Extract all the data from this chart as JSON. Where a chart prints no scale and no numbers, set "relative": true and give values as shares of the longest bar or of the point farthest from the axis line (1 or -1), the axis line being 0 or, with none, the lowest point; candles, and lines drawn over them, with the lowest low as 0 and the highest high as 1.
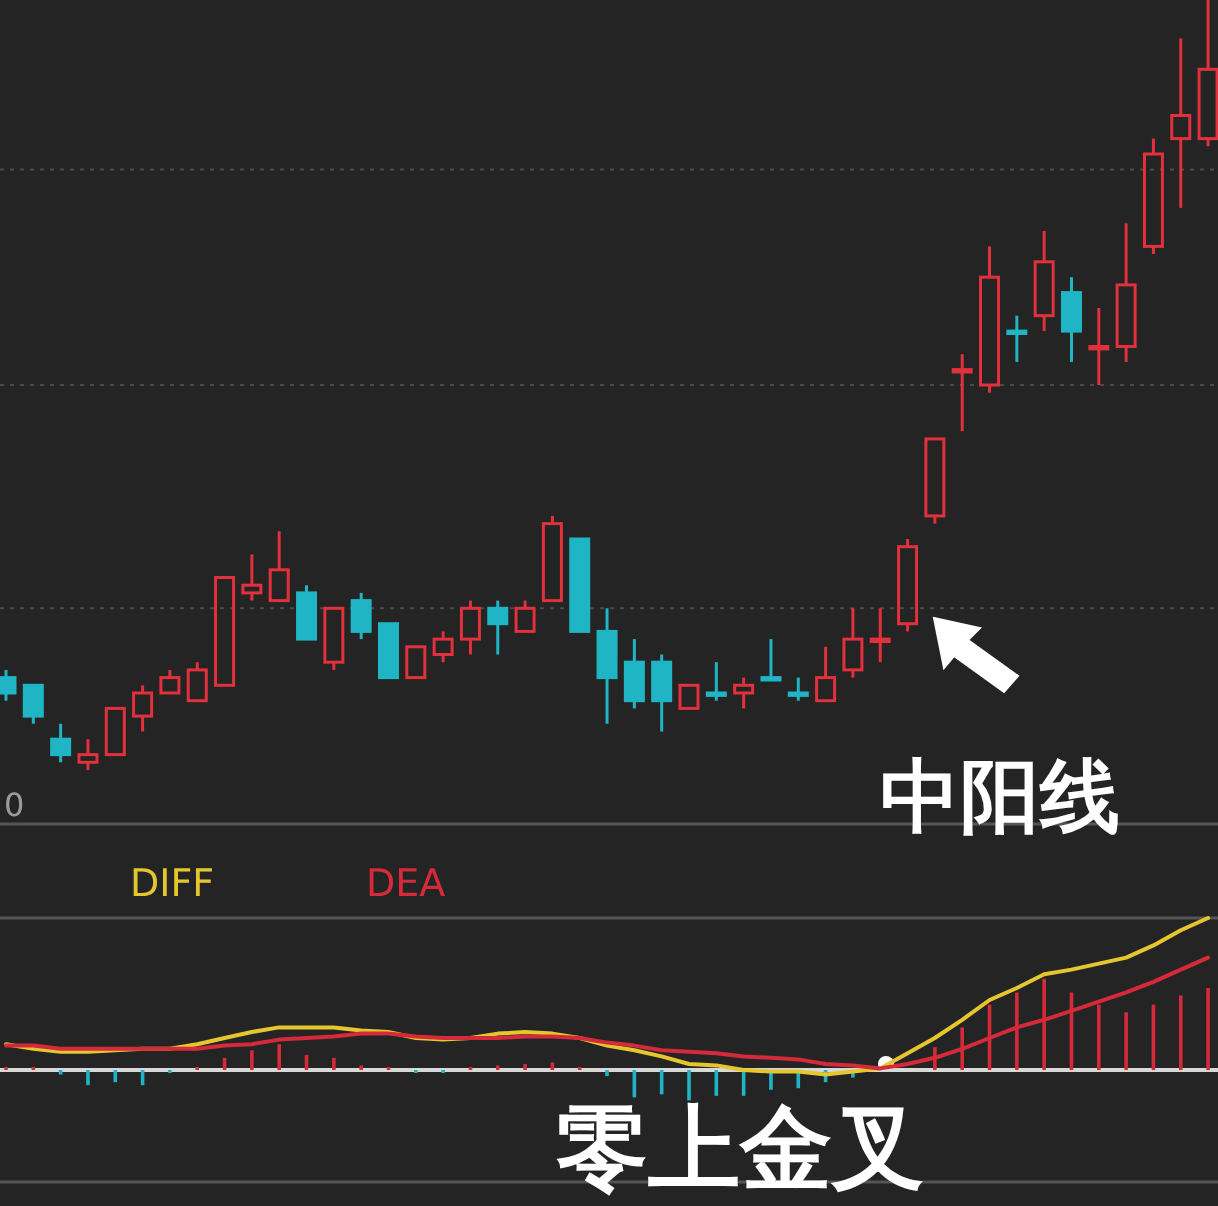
{
  "chart_data": [
    {
      "type": "candlestick",
      "relative": true,
      "categories": [
        null,
        null,
        null,
        null,
        null,
        null,
        null,
        null,
        null,
        null,
        null,
        null,
        null,
        null,
        null,
        null,
        null,
        null,
        null,
        null,
        null,
        null,
        null,
        null,
        null,
        null,
        null,
        null,
        null,
        null,
        null,
        null,
        null,
        null,
        null,
        null,
        null,
        null,
        null,
        null,
        null,
        null,
        null,
        null,
        null
      ],
      "ohlc": [
        [
          0.12,
          0.13,
          0.09,
          0.1
        ],
        [
          0.11,
          0.11,
          0.06,
          0.07
        ],
        [
          0.04,
          0.06,
          0.01,
          0.02
        ],
        [
          0.01,
          0.04,
          0,
          0.02
        ],
        [
          0.02,
          0.08,
          0.02,
          0.08
        ],
        [
          0.07,
          0.11,
          0.05,
          0.1
        ],
        [
          0.1,
          0.13,
          0.1,
          0.12
        ],
        [
          0.09,
          0.14,
          0.09,
          0.13
        ],
        [
          0.11,
          0.25,
          0.11,
          0.25
        ],
        [
          0.23,
          0.28,
          0.22,
          0.24
        ],
        [
          0.22,
          0.31,
          0.22,
          0.26
        ],
        [
          0.23,
          0.24,
          0.17,
          0.17
        ],
        [
          0.14,
          0.21,
          0.13,
          0.21
        ],
        [
          0.22,
          0.23,
          0.17,
          0.18
        ],
        [
          0.19,
          0.19,
          0.12,
          0.12
        ],
        [
          0.12,
          0.16,
          0.12,
          0.16
        ],
        [
          0.15,
          0.18,
          0.14,
          0.17
        ],
        [
          0.17,
          0.22,
          0.15,
          0.21
        ],
        [
          0.21,
          0.22,
          0.15,
          0.19
        ],
        [
          0.18,
          0.22,
          0.18,
          0.21
        ],
        [
          0.22,
          0.33,
          0.22,
          0.32
        ],
        [
          0.3,
          0.3,
          0.18,
          0.18
        ],
        [
          0.18,
          0.21,
          0.06,
          0.12
        ],
        [
          0.14,
          0.17,
          0.08,
          0.09
        ],
        [
          0.14,
          0.15,
          0.05,
          0.09
        ],
        [
          0.08,
          0.11,
          0.08,
          0.11
        ],
        [
          0.1,
          0.14,
          0.09,
          0.1
        ],
        [
          0.1,
          0.12,
          0.08,
          0.11
        ],
        [
          0.12,
          0.17,
          0.12,
          0.12
        ],
        [
          0.1,
          0.12,
          0.09,
          0.1
        ],
        [
          0.09,
          0.16,
          0.09,
          0.12
        ],
        [
          0.13,
          0.21,
          0.12,
          0.17
        ],
        [
          0.17,
          0.21,
          0.14,
          0.17
        ],
        [
          0.19,
          0.3,
          0.18,
          0.29
        ],
        [
          0.33,
          0.43,
          0.32,
          0.43
        ],
        [
          0.52,
          0.54,
          0.44,
          0.52
        ],
        [
          0.5,
          0.68,
          0.49,
          0.64
        ],
        [
          0.57,
          0.59,
          0.53,
          0.57
        ],
        [
          0.59,
          0.7,
          0.57,
          0.66
        ],
        [
          0.62,
          0.64,
          0.53,
          0.57
        ],
        [
          0.55,
          0.6,
          0.5,
          0.55
        ],
        [
          0.55,
          0.71,
          0.53,
          0.63
        ],
        [
          0.68,
          0.82,
          0.67,
          0.8
        ],
        [
          0.82,
          0.95,
          0.73,
          0.85
        ],
        [
          0.82,
          1,
          0.81,
          0.91
        ]
      ],
      "colors": [
        "#1fb5c5",
        "#1fb5c5",
        "#1fb5c5",
        "#e0313c",
        "#e0313c",
        "#e0313c",
        "#e0313c",
        "#e0313c",
        "#e0313c",
        "#e0313c",
        "#e0313c",
        "#1fb5c5",
        "#e0313c",
        "#1fb5c5",
        "#1fb5c5",
        "#e0313c",
        "#e0313c",
        "#e0313c",
        "#1fb5c5",
        "#e0313c",
        "#e0313c",
        "#1fb5c5",
        "#1fb5c5",
        "#1fb5c5",
        "#1fb5c5",
        "#e0313c",
        "#1fb5c5",
        "#e0313c",
        "#1fb5c5",
        "#1fb5c5",
        "#e0313c",
        "#e0313c",
        "#e0313c",
        "#e0313c",
        "#e0313c",
        "#e0313c",
        "#e0313c",
        "#1fb5c5",
        "#e0313c",
        "#1fb5c5",
        "#e0313c",
        "#e0313c",
        "#e0313c",
        "#e0313c",
        "#e0313c"
      ],
      "ref_lines": [
        {
          "axis": "y",
          "value": 0.78,
          "color": "#4a4a4a",
          "line_style": "dotted"
        },
        {
          "axis": "y",
          "value": 0.5,
          "color": "#4a4a4a",
          "line_style": "dotted"
        },
        {
          "axis": "y",
          "value": 0.21,
          "color": "#4a4a4a",
          "line_style": "dotted"
        }
      ],
      "annotations": [
        "0",
        "中阳线"
      ]
    },
    {
      "type": "line",
      "relative": true,
      "legend": "top left",
      "categories": [
        null,
        null,
        null,
        null,
        null,
        null,
        null,
        null,
        null,
        null,
        null,
        null,
        null,
        null,
        null,
        null,
        null,
        null,
        null,
        null,
        null,
        null,
        null,
        null,
        null,
        null,
        null,
        null,
        null,
        null,
        null,
        null,
        null,
        null,
        null,
        null,
        null,
        null,
        null,
        null,
        null,
        null,
        null,
        null,
        null
      ],
      "series": [
        {
          "name": "DIFF",
          "color": "#e6c62e",
          "values": [
            0.17,
            0.14,
            0.12,
            0.12,
            0.13,
            0.14,
            0.14,
            0.17,
            0.21,
            0.25,
            0.28,
            0.28,
            0.28,
            0.26,
            0.25,
            0.21,
            0.2,
            0.21,
            0.24,
            0.25,
            0.24,
            0.21,
            0.16,
            0.13,
            0.09,
            0.04,
            0.03,
            0,
            -0.01,
            -0.01,
            -0.03,
            -0.01,
            0.01,
            0.11,
            0.21,
            0.33,
            0.46,
            0.54,
            0.63,
            0.66,
            0.7,
            0.74,
            0.82,
            0.92,
            1
          ]
        },
        {
          "name": "DEA",
          "color": "#d42a3a",
          "values": [
            0.16,
            0.16,
            0.14,
            0.14,
            0.14,
            0.14,
            0.14,
            0.14,
            0.16,
            0.17,
            0.2,
            0.21,
            0.22,
            0.24,
            0.24,
            0.22,
            0.21,
            0.21,
            0.21,
            0.22,
            0.22,
            0.21,
            0.18,
            0.16,
            0.13,
            0.12,
            0.11,
            0.09,
            0.08,
            0.07,
            0.04,
            0.03,
            0.01,
            0.04,
            0.08,
            0.14,
            0.21,
            0.28,
            0.33,
            0.39,
            0.45,
            0.51,
            0.58,
            0.66,
            0.74
          ]
        },
        {
          "type": "bar",
          "values": [
            0.02,
            0.02,
            -0.03,
            -0.1,
            -0.08,
            -0.1,
            -0.02,
            0.02,
            0.08,
            0.13,
            0.17,
            0.1,
            0.08,
            0.03,
            0.02,
            -0.02,
            -0.02,
            0.02,
            0.03,
            0.04,
            0.05,
            0.02,
            -0.04,
            -0.18,
            -0.16,
            -0.2,
            -0.17,
            -0.17,
            -0.13,
            -0.12,
            -0.08,
            -0.05,
            null,
            null,
            0.15,
            0.28,
            0.43,
            0.51,
            0.6,
            0.51,
            0.43,
            0.38,
            0.43,
            0.49,
            0.54
          ],
          "colors": [
            "#d42a3a",
            "#d42a3a",
            "#1fb5c5",
            "#1fb5c5",
            "#1fb5c5",
            "#1fb5c5",
            "#1fb5c5",
            "#d42a3a",
            "#d42a3a",
            "#d42a3a",
            "#d42a3a",
            "#d42a3a",
            "#d42a3a",
            "#d42a3a",
            "#d42a3a",
            "#1fb5c5",
            "#1fb5c5",
            "#d42a3a",
            "#d42a3a",
            "#d42a3a",
            "#d42a3a",
            "#d42a3a",
            "#1fb5c5",
            "#1fb5c5",
            "#1fb5c5",
            "#1fb5c5",
            "#1fb5c5",
            "#1fb5c5",
            "#1fb5c5",
            "#1fb5c5",
            "#1fb5c5",
            "#1fb5c5",
            null,
            null,
            "#d42a3a",
            "#d42a3a",
            "#d42a3a",
            "#d42a3a",
            "#d42a3a",
            "#d42a3a",
            "#d42a3a",
            "#d42a3a",
            "#d42a3a",
            "#d42a3a",
            "#d42a3a"
          ]
        }
      ],
      "annotations": [
        "零上金叉"
      ]
    }
  ]
}
